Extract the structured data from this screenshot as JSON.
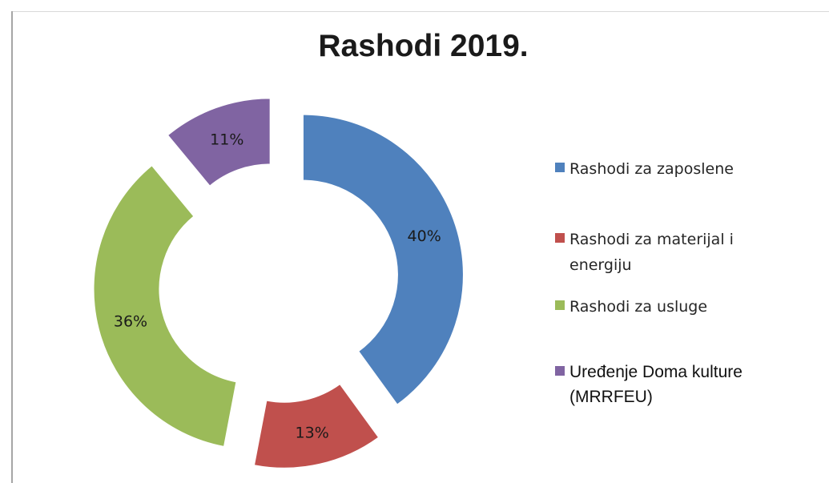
{
  "chart_data": {
    "type": "pie",
    "variant": "exploded-donut",
    "title": "Rashodi 2019.",
    "categories": [
      "Rashodi za zaposlene",
      "Rashodi za materijal i energiju",
      "Rashodi za usluge",
      "Uređenje Doma kulture (MRRFEU)"
    ],
    "values": [
      40,
      13,
      36,
      11
    ],
    "value_labels": [
      "40%",
      "13%",
      "36%",
      "11%"
    ],
    "colors": [
      "#4f81bd",
      "#c0504d",
      "#9bbb59",
      "#8064a2"
    ],
    "legend": {
      "position": "right",
      "entries": [
        "Rashodi za zaposlene",
        "Rashodi za materijal i energiju",
        "Rashodi za usluge",
        "Uređenje Doma kulture (MRRFEU)"
      ]
    }
  }
}
